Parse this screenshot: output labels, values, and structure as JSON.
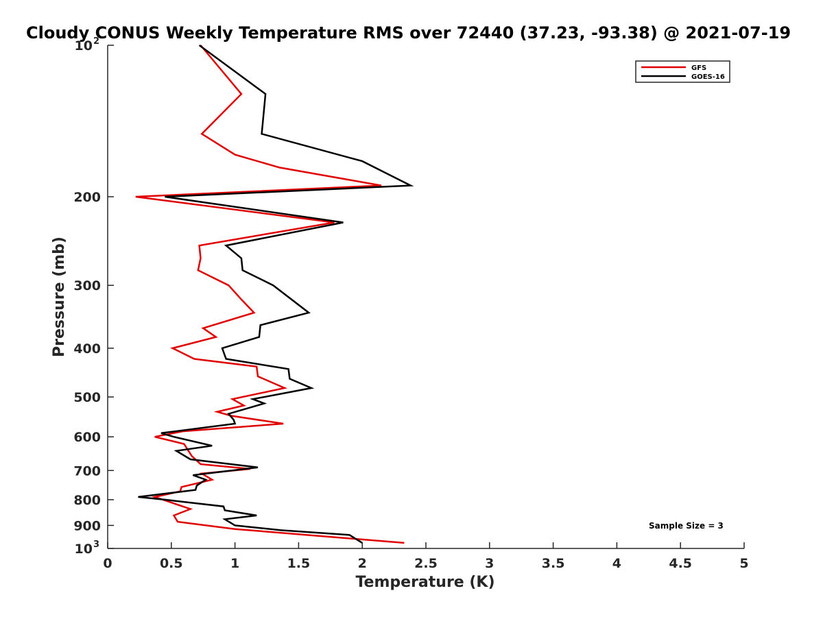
{
  "chart_data": {
    "type": "line",
    "title": "Cloudy CONUS Weekly Temperature RMS over 72440 (37.23, -93.38) @ 2021-07-19",
    "xlabel": "Temperature (K)",
    "ylabel": "Pressure (mb)",
    "xlim": [
      0,
      5
    ],
    "ylim": [
      100,
      1000
    ],
    "yscale": "log",
    "y_reversed": true,
    "x_ticks": [
      "0",
      "0.5",
      "1",
      "1.5",
      "2",
      "2.5",
      "3",
      "3.5",
      "4",
      "4.5",
      "5"
    ],
    "x_tick_values": [
      0,
      0.5,
      1,
      1.5,
      2,
      2.5,
      3,
      3.5,
      4,
      4.5,
      5
    ],
    "y_ticks": [
      {
        "value": 100,
        "base": "10",
        "exp": "2"
      },
      {
        "value": 200,
        "label": "200"
      },
      {
        "value": 300,
        "label": "300"
      },
      {
        "value": 400,
        "label": "400"
      },
      {
        "value": 500,
        "label": "500"
      },
      {
        "value": 600,
        "label": "600"
      },
      {
        "value": 700,
        "label": "700"
      },
      {
        "value": 800,
        "label": "800"
      },
      {
        "value": 900,
        "label": "900"
      },
      {
        "value": 1000,
        "base": "10",
        "exp": "3"
      }
    ],
    "legend_position": "top-right",
    "annotation": "Sample Size = 3",
    "series": [
      {
        "name": "GFS",
        "color": "#e00000",
        "points": [
          [
            0.73,
            100
          ],
          [
            1.05,
            125
          ],
          [
            0.74,
            150
          ],
          [
            1.0,
            165
          ],
          [
            1.35,
            175
          ],
          [
            2.15,
            190
          ],
          [
            0.22,
            200
          ],
          [
            1.78,
            225
          ],
          [
            0.72,
            250
          ],
          [
            0.73,
            265
          ],
          [
            0.71,
            280
          ],
          [
            0.95,
            300
          ],
          [
            1.05,
            320
          ],
          [
            1.15,
            340
          ],
          [
            0.75,
            365
          ],
          [
            0.85,
            380
          ],
          [
            0.51,
            400
          ],
          [
            0.68,
            420
          ],
          [
            1.17,
            435
          ],
          [
            1.18,
            455
          ],
          [
            1.39,
            480
          ],
          [
            0.98,
            505
          ],
          [
            1.07,
            520
          ],
          [
            0.86,
            535
          ],
          [
            0.97,
            545
          ],
          [
            1.38,
            565
          ],
          [
            0.59,
            585
          ],
          [
            0.37,
            600
          ],
          [
            0.6,
            620
          ],
          [
            0.66,
            655
          ],
          [
            0.73,
            680
          ],
          [
            1.12,
            695
          ],
          [
            0.74,
            710
          ],
          [
            0.82,
            730
          ],
          [
            0.58,
            755
          ],
          [
            0.57,
            770
          ],
          [
            0.37,
            790
          ],
          [
            0.65,
            835
          ],
          [
            0.52,
            860
          ],
          [
            0.55,
            885
          ],
          [
            1.0,
            915
          ],
          [
            2.33,
            975
          ]
        ]
      },
      {
        "name": "GOES-16",
        "color": "#000000",
        "points": [
          [
            0.72,
            100
          ],
          [
            1.24,
            125
          ],
          [
            1.21,
            150
          ],
          [
            2.0,
            170
          ],
          [
            2.38,
            190
          ],
          [
            0.45,
            200
          ],
          [
            1.85,
            225
          ],
          [
            0.93,
            250
          ],
          [
            1.05,
            265
          ],
          [
            1.06,
            280
          ],
          [
            1.3,
            300
          ],
          [
            1.58,
            340
          ],
          [
            1.2,
            360
          ],
          [
            1.19,
            380
          ],
          [
            0.9,
            400
          ],
          [
            0.93,
            420
          ],
          [
            1.42,
            440
          ],
          [
            1.43,
            460
          ],
          [
            1.6,
            480
          ],
          [
            1.14,
            505
          ],
          [
            1.23,
            515
          ],
          [
            0.95,
            540
          ],
          [
            0.99,
            555
          ],
          [
            1.0,
            565
          ],
          [
            0.42,
            590
          ],
          [
            0.52,
            600
          ],
          [
            0.82,
            625
          ],
          [
            0.54,
            640
          ],
          [
            0.65,
            665
          ],
          [
            1.18,
            690
          ],
          [
            0.67,
            715
          ],
          [
            0.77,
            730
          ],
          [
            0.7,
            750
          ],
          [
            0.69,
            765
          ],
          [
            0.24,
            790
          ],
          [
            0.45,
            800
          ],
          [
            0.91,
            825
          ],
          [
            0.92,
            840
          ],
          [
            1.17,
            860
          ],
          [
            0.92,
            875
          ],
          [
            1.0,
            900
          ],
          [
            1.36,
            920
          ],
          [
            1.9,
            940
          ],
          [
            2.0,
            975
          ]
        ]
      }
    ]
  }
}
